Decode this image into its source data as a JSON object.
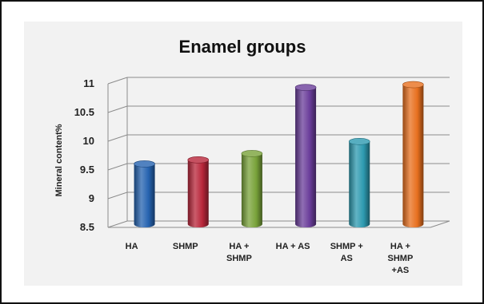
{
  "chart_data": {
    "type": "bar",
    "style": "3d-cylinder",
    "title": "Enamel groups",
    "xlabel": "",
    "ylabel": "Mineral content%",
    "ylim": [
      8.5,
      11
    ],
    "yticks": [
      8.5,
      9,
      9.5,
      10,
      10.5,
      11
    ],
    "ytick_labels": [
      "8.5",
      "9",
      "9.5",
      "10",
      "10.5",
      "11"
    ],
    "grid": true,
    "legend": "none",
    "categories": [
      "HA",
      "SHMP",
      "HA + SHMP",
      "HA + AS",
      "SHMP + AS",
      "HA + SHMP +AS"
    ],
    "category_lines": [
      [
        "HA"
      ],
      [
        "SHMP"
      ],
      [
        "HA +",
        "SHMP"
      ],
      [
        "HA + AS"
      ],
      [
        "SHMP +",
        "AS"
      ],
      [
        "HA +",
        "SHMP",
        "+AS"
      ]
    ],
    "values": [
      9.55,
      9.62,
      9.73,
      10.88,
      9.94,
      10.93
    ],
    "colors": [
      "#2563b0",
      "#b8263a",
      "#79a33a",
      "#6a3d9a",
      "#2d9ab0",
      "#e8701f"
    ]
  }
}
